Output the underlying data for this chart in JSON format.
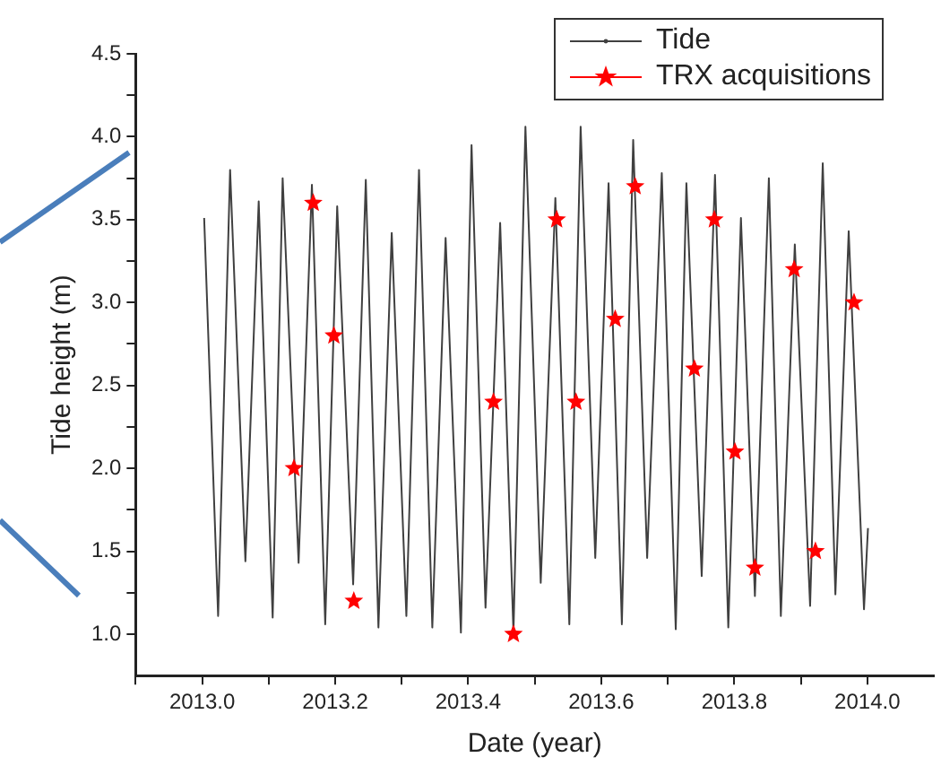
{
  "chart_data": {
    "type": "line",
    "xlabel": "Date (year)",
    "ylabel": "Tide height (m)",
    "xlim": [
      2012.9,
      2014.1
    ],
    "xticks": [
      {
        "value": 2012.9,
        "label": null
      },
      {
        "value": 2013,
        "label": "2013.0"
      },
      {
        "value": 2013.1,
        "label": null
      },
      {
        "value": 2013.2,
        "label": "2013.2"
      },
      {
        "value": 2013.3,
        "label": null
      },
      {
        "value": 2013.4,
        "label": "2013.4"
      },
      {
        "value": 2013.5,
        "label": null
      },
      {
        "value": 2013.6,
        "label": "2013.6"
      },
      {
        "value": 2013.7,
        "label": null
      },
      {
        "value": 2013.8,
        "label": "2013.8"
      },
      {
        "value": 2013.9,
        "label": null
      },
      {
        "value": 2014,
        "label": "2014.0"
      }
    ],
    "ylim": [
      0.75,
      4.5
    ],
    "yticks": [
      {
        "value": 1,
        "label": "1.0"
      },
      {
        "value": 1.25,
        "label": null
      },
      {
        "value": 1.5,
        "label": "1.5"
      },
      {
        "value": 1.75,
        "label": null
      },
      {
        "value": 2,
        "label": "2.0"
      },
      {
        "value": 2.25,
        "label": null
      },
      {
        "value": 2.5,
        "label": "2.5"
      },
      {
        "value": 2.75,
        "label": null
      },
      {
        "value": 3,
        "label": "3.0"
      },
      {
        "value": 3.25,
        "label": null
      },
      {
        "value": 3.5,
        "label": "3.5"
      },
      {
        "value": 3.75,
        "label": null
      },
      {
        "value": 4,
        "label": "4.0"
      },
      {
        "value": 4.25,
        "label": null
      },
      {
        "value": 4.5,
        "label": "4.5"
      }
    ],
    "grid": false,
    "legend": "top right",
    "series": [
      {
        "name": "Tide",
        "type": "line",
        "color": "#404040",
        "marker": "none",
        "x": [
          2013.003,
          2013.024,
          2013.042,
          2013.065,
          2013.085,
          2013.106,
          2013.121,
          2013.145,
          2013.165,
          2013.185,
          2013.203,
          2013.227,
          2013.246,
          2013.265,
          2013.285,
          2013.307,
          2013.326,
          2013.346,
          2013.366,
          2013.389,
          2013.405,
          2013.426,
          2013.448,
          2013.468,
          2013.486,
          2013.509,
          2013.531,
          2013.552,
          2013.569,
          2013.591,
          2013.611,
          2013.631,
          2013.648,
          2013.669,
          2013.691,
          2013.712,
          2013.728,
          2013.751,
          2013.771,
          2013.791,
          2013.81,
          2013.831,
          2013.852,
          2013.87,
          2013.891,
          2013.914,
          2013.933,
          2013.952,
          2013.972,
          2013.995,
          2014.001
        ],
        "values": [
          3.51,
          1.11,
          3.8,
          1.44,
          3.61,
          1.1,
          3.75,
          1.43,
          3.71,
          1.06,
          3.58,
          1.3,
          3.74,
          1.04,
          3.42,
          1.11,
          3.8,
          1.04,
          3.39,
          1.01,
          3.95,
          1.16,
          3.48,
          1.01,
          4.06,
          1.31,
          3.63,
          1.06,
          4.06,
          1.46,
          3.72,
          1.06,
          3.98,
          1.46,
          3.78,
          1.03,
          3.72,
          1.35,
          3.77,
          1.04,
          3.51,
          1.23,
          3.75,
          1.11,
          3.35,
          1.17,
          3.84,
          1.24,
          3.43,
          1.15,
          1.64
        ]
      },
      {
        "name": "TRX acquisitions",
        "type": "scatter",
        "color": "#ff0000",
        "marker": "star",
        "x": [
          2013.138,
          2013.167,
          2013.198,
          2013.228,
          2013.438,
          2013.468,
          2013.533,
          2013.562,
          2013.621,
          2013.651,
          2013.74,
          2013.77,
          2013.801,
          2013.831,
          2013.89,
          2013.922,
          2013.98
        ],
        "values": [
          2.0,
          3.6,
          2.8,
          1.2,
          2.4,
          1.0,
          3.5,
          2.4,
          2.9,
          3.7,
          2.6,
          3.5,
          2.1,
          1.4,
          3.2,
          1.5,
          3.0
        ]
      }
    ]
  }
}
